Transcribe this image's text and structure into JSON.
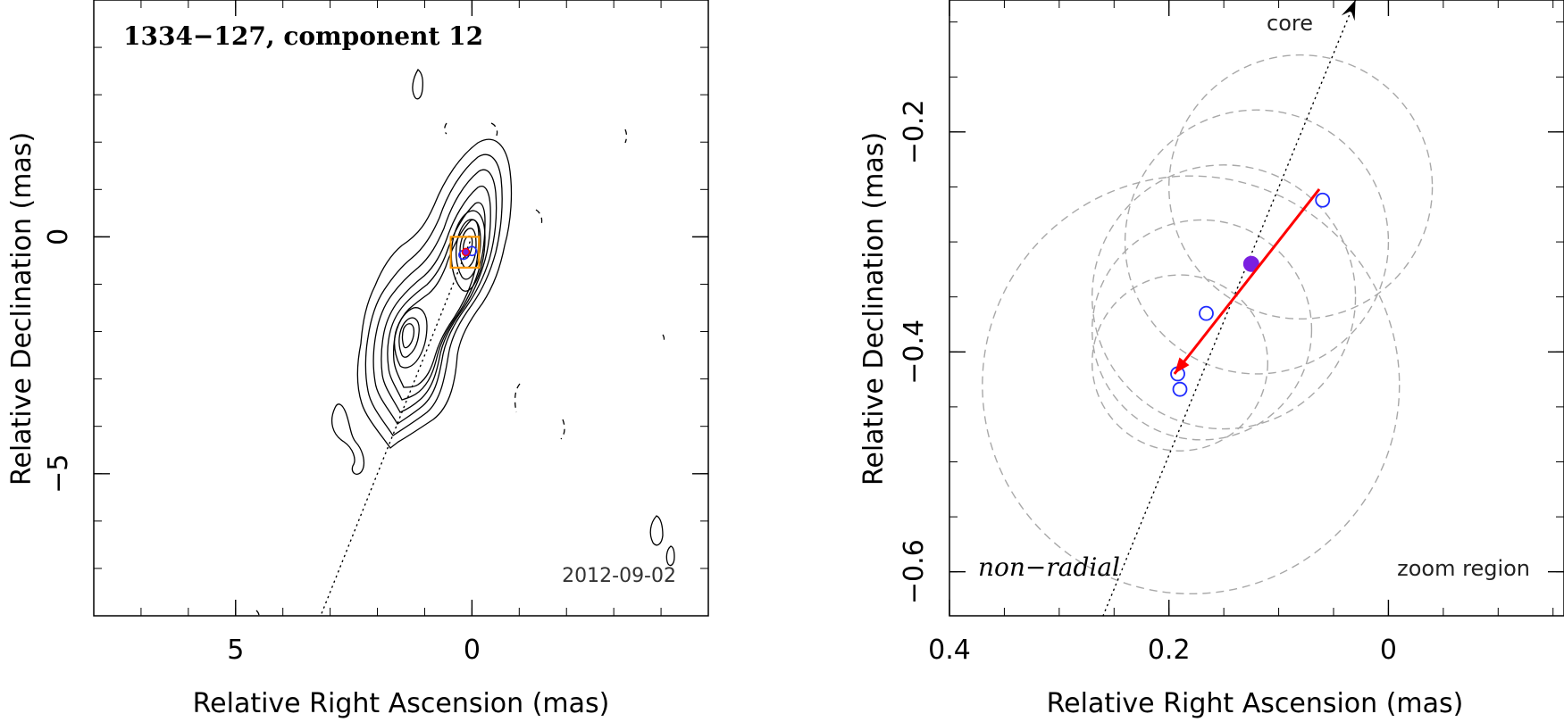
{
  "chart_data": [
    {
      "type": "contour",
      "title": "1334−127, component 12",
      "epoch": "2012-09-02",
      "xlabel": "Relative Right Ascension (mas)",
      "ylabel": "Relative Declination (mas)",
      "xlim": [
        8.0,
        -5.0
      ],
      "ylim": [
        -8.0,
        5.0
      ],
      "x_ticks": [
        5,
        0
      ],
      "x_tick_labels": [
        "5",
        "0"
      ],
      "y_ticks": [
        0,
        -5
      ],
      "y_tick_labels": [
        "0",
        "−5"
      ],
      "core_direction_line": {
        "from": [
          0,
          0
        ],
        "to": [
          3.2,
          -8.0
        ]
      },
      "zoom_box": {
        "ra": [
          0.45,
          -0.15
        ],
        "dec": [
          -0.65,
          0.0
        ]
      },
      "components": [
        {
          "ra": 0.18,
          "dec": -0.38,
          "style": "open-blue"
        },
        {
          "ra": 0.0,
          "dec": -0.3,
          "style": "open-blue"
        },
        {
          "ra": 0.13,
          "dec": -0.32,
          "style": "filled-purple"
        }
      ]
    },
    {
      "type": "scatter",
      "xlabel": "Relative Right Ascension (mas)",
      "ylabel": "Relative Declination (mas)",
      "xlim": [
        0.4,
        -0.16
      ],
      "ylim": [
        -0.64,
        -0.08
      ],
      "x_ticks": [
        0.4,
        0.2,
        0
      ],
      "x_tick_labels": [
        "0.4",
        "0.2",
        "0"
      ],
      "y_ticks": [
        -0.2,
        -0.4,
        -0.6
      ],
      "y_tick_labels": [
        "−0.2",
        "−0.4",
        "−0.6"
      ],
      "core_label": "core",
      "motion_label": "non−radial",
      "region_label": "zoom region",
      "core_direction_line": {
        "from": [
          0.26,
          -0.64
        ],
        "to": [
          0.03,
          -0.08
        ]
      },
      "open_points": [
        {
          "ra": 0.06,
          "dec": -0.262
        },
        {
          "ra": 0.166,
          "dec": -0.365
        },
        {
          "ra": 0.192,
          "dec": -0.42
        },
        {
          "ra": 0.19,
          "dec": -0.434
        }
      ],
      "filled_point": {
        "ra": 0.125,
        "dec": -0.32
      },
      "velocity_vector": {
        "from": [
          0.063,
          -0.252
        ],
        "to": [
          0.195,
          -0.42
        ]
      },
      "beam_circles": [
        {
          "ra": 0.08,
          "dec": -0.25,
          "r": 0.12
        },
        {
          "ra": 0.12,
          "dec": -0.3,
          "r": 0.12
        },
        {
          "ra": 0.17,
          "dec": -0.38,
          "r": 0.1
        },
        {
          "ra": 0.15,
          "dec": -0.35,
          "r": 0.12
        },
        {
          "ra": 0.19,
          "dec": -0.41,
          "r": 0.08
        },
        {
          "ra": 0.18,
          "dec": -0.43,
          "r": 0.19
        }
      ]
    }
  ]
}
